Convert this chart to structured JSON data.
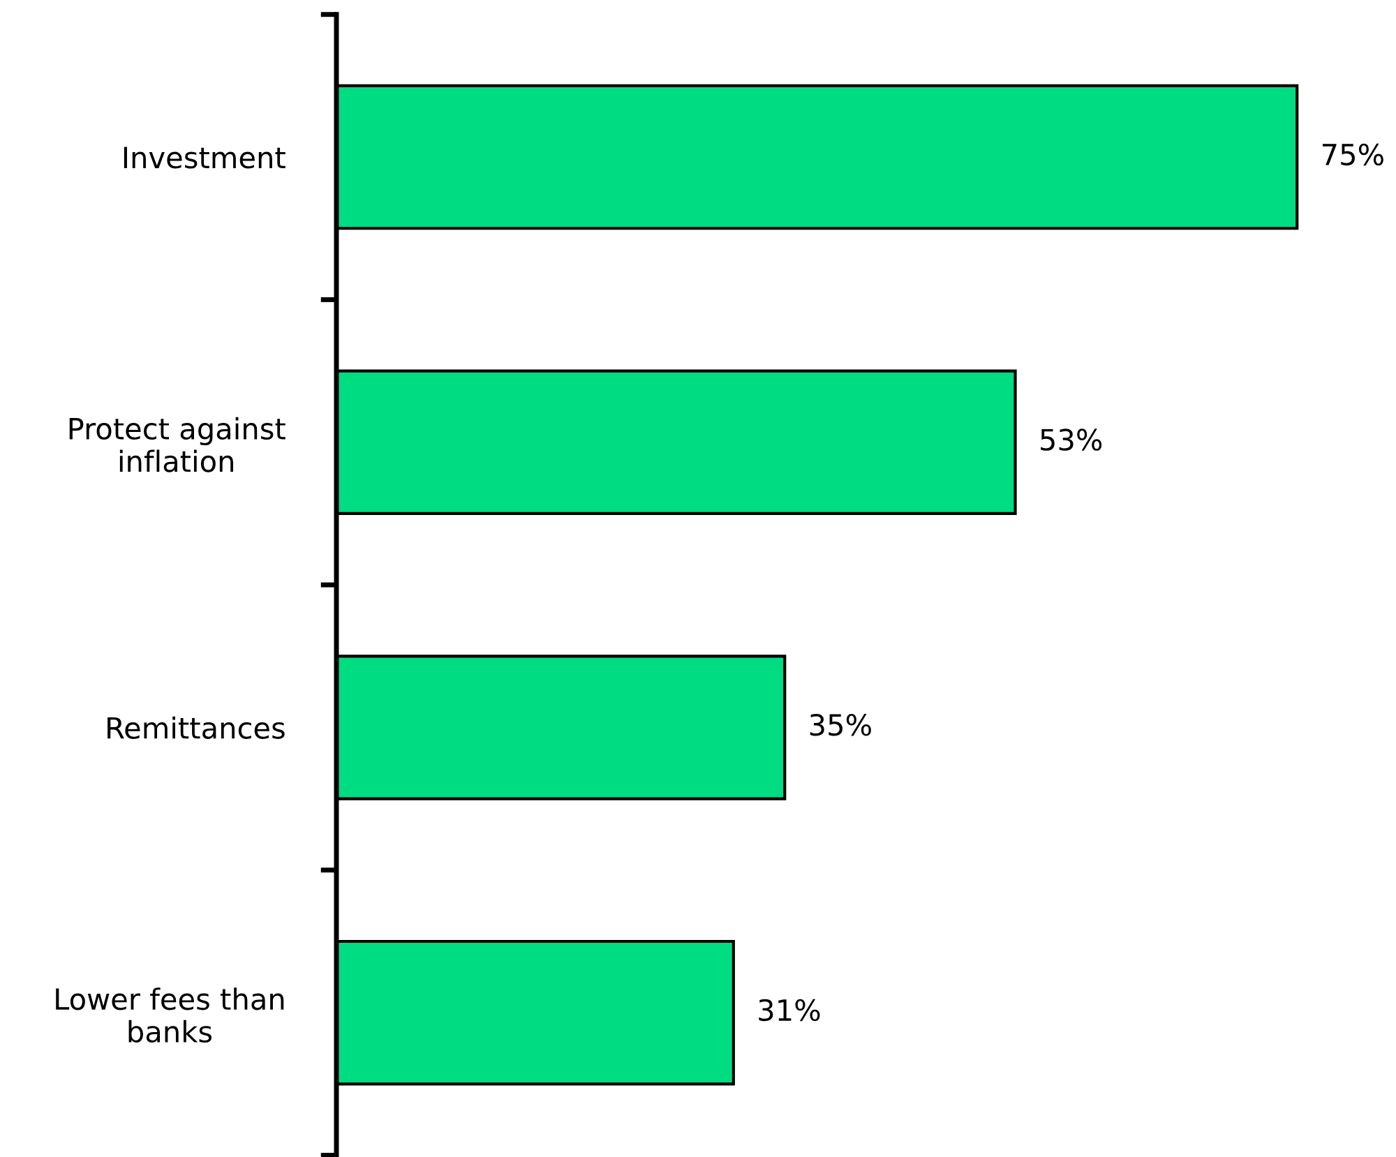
{
  "chart_data": {
    "type": "bar",
    "orientation": "horizontal",
    "categories": [
      "Investment",
      "Protect against inflation",
      "Remittances",
      "Lower fees than banks"
    ],
    "values": [
      75,
      53,
      35,
      31
    ],
    "value_labels": [
      "75%",
      "53%",
      "35%",
      "31%"
    ],
    "color": "#00dc82",
    "grid": false,
    "legend": false
  }
}
